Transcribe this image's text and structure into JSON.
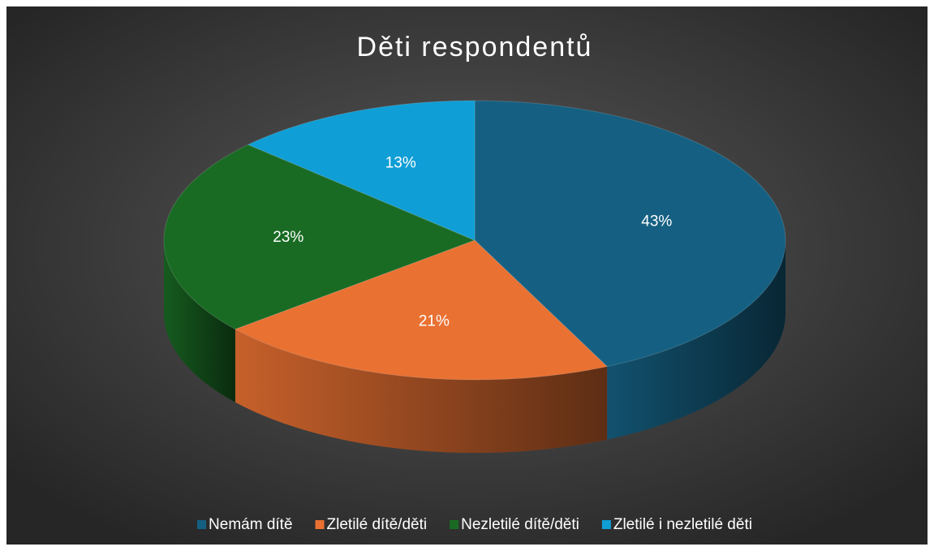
{
  "chart_data": {
    "type": "pie",
    "title": "Děti respondentů",
    "categories": [
      "Nemám dítě",
      "Zletilé dítě/děti",
      "Nezletilé dítě/děti",
      "Zletilé i nezletilé děti"
    ],
    "values": [
      43,
      21,
      23,
      13
    ],
    "value_labels": [
      "43%",
      "21%",
      "23%",
      "13%"
    ],
    "colors": [
      "#156082",
      "#e97132",
      "#196b24",
      "#0f9ed5"
    ],
    "legend": "bottom"
  }
}
